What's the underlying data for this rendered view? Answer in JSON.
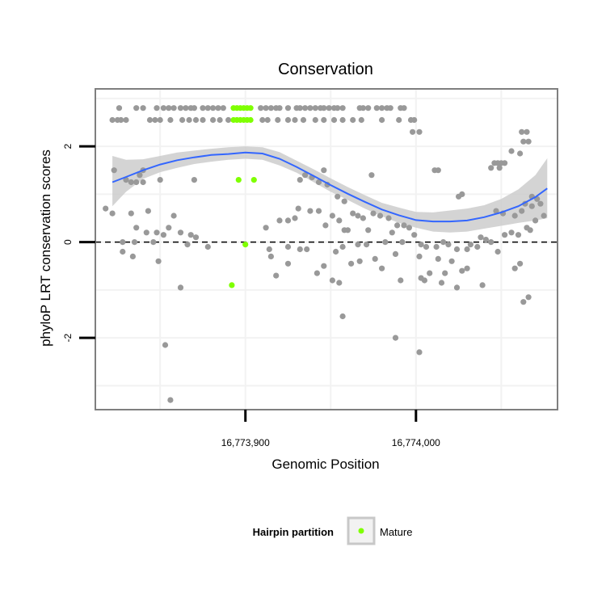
{
  "chart_data": {
    "type": "scatter",
    "title": "Conservation",
    "xlabel": "Genomic Position",
    "ylabel": "phyloP LRT conservation scores",
    "xlim": [
      16773812,
      16774083
    ],
    "ylim": [
      -3.5,
      3.2
    ],
    "x_ticks": [
      {
        "value": 16773900,
        "label": "16,773,900"
      },
      {
        "value": 16774000,
        "label": "16,774,000"
      }
    ],
    "y_ticks": [
      {
        "value": -2,
        "label": "-2"
      },
      {
        "value": 0,
        "label": "0"
      },
      {
        "value": 2,
        "label": "2"
      }
    ],
    "grid": true,
    "reference_line": {
      "y": 0,
      "style": "dashed"
    },
    "legend": {
      "position": "bottom",
      "title": "Hairpin partition",
      "entries": [
        {
          "label": "Mature",
          "color": "#7fff00"
        }
      ]
    },
    "colors": {
      "other_points": "#999999",
      "mature_points": "#7fff00",
      "smooth_line": "#3366ff",
      "confidence_band": "#cccccc",
      "panel_border": "#7f7f7f",
      "grid": "#f2f2f2"
    },
    "series": [
      {
        "name": "Mature",
        "color": "#7fff00",
        "points": [
          [
            16773893,
            2.8
          ],
          [
            16773895,
            2.8
          ],
          [
            16773897,
            2.8
          ],
          [
            16773899,
            2.8
          ],
          [
            16773901,
            2.8
          ],
          [
            16773903,
            2.8
          ],
          [
            16773893,
            2.55
          ],
          [
            16773895,
            2.55
          ],
          [
            16773897,
            2.55
          ],
          [
            16773899,
            2.55
          ],
          [
            16773901,
            2.55
          ],
          [
            16773903,
            2.55
          ],
          [
            16773896,
            1.3
          ],
          [
            16773905,
            1.3
          ],
          [
            16773900,
            -0.05
          ],
          [
            16773892,
            -0.9
          ]
        ]
      },
      {
        "color": "#999999",
        "points": [
          [
            16773826,
            2.8
          ],
          [
            16773836,
            2.8
          ],
          [
            16773840,
            2.8
          ],
          [
            16773848,
            2.8
          ],
          [
            16773852,
            2.8
          ],
          [
            16773855,
            2.8
          ],
          [
            16773858,
            2.8
          ],
          [
            16773862,
            2.8
          ],
          [
            16773865,
            2.8
          ],
          [
            16773868,
            2.8
          ],
          [
            16773870,
            2.8
          ],
          [
            16773875,
            2.8
          ],
          [
            16773878,
            2.8
          ],
          [
            16773881,
            2.8
          ],
          [
            16773884,
            2.8
          ],
          [
            16773887,
            2.8
          ],
          [
            16773909,
            2.8
          ],
          [
            16773912,
            2.8
          ],
          [
            16773915,
            2.8
          ],
          [
            16773918,
            2.8
          ],
          [
            16773920,
            2.8
          ],
          [
            16773925,
            2.8
          ],
          [
            16773930,
            2.8
          ],
          [
            16773932,
            2.8
          ],
          [
            16773935,
            2.8
          ],
          [
            16773938,
            2.8
          ],
          [
            16773941,
            2.8
          ],
          [
            16773944,
            2.8
          ],
          [
            16773946,
            2.8
          ],
          [
            16773949,
            2.8
          ],
          [
            16773952,
            2.8
          ],
          [
            16773954,
            2.8
          ],
          [
            16773957,
            2.8
          ],
          [
            16773967,
            2.8
          ],
          [
            16773969,
            2.8
          ],
          [
            16773972,
            2.8
          ],
          [
            16773977,
            2.8
          ],
          [
            16773980,
            2.8
          ],
          [
            16773983,
            2.8
          ],
          [
            16773985,
            2.8
          ],
          [
            16773991,
            2.8
          ],
          [
            16773993,
            2.8
          ],
          [
            16773822,
            2.55
          ],
          [
            16773825,
            2.55
          ],
          [
            16773827,
            2.55
          ],
          [
            16773830,
            2.55
          ],
          [
            16773844,
            2.55
          ],
          [
            16773847,
            2.55
          ],
          [
            16773850,
            2.55
          ],
          [
            16773856,
            2.55
          ],
          [
            16773863,
            2.55
          ],
          [
            16773867,
            2.55
          ],
          [
            16773871,
            2.55
          ],
          [
            16773875,
            2.55
          ],
          [
            16773881,
            2.55
          ],
          [
            16773885,
            2.55
          ],
          [
            16773890,
            2.55
          ],
          [
            16773910,
            2.55
          ],
          [
            16773913,
            2.55
          ],
          [
            16773919,
            2.55
          ],
          [
            16773925,
            2.55
          ],
          [
            16773929,
            2.55
          ],
          [
            16773934,
            2.55
          ],
          [
            16773941,
            2.55
          ],
          [
            16773946,
            2.55
          ],
          [
            16773952,
            2.55
          ],
          [
            16773957,
            2.55
          ],
          [
            16773963,
            2.55
          ],
          [
            16773968,
            2.55
          ],
          [
            16773980,
            2.55
          ],
          [
            16773990,
            2.55
          ],
          [
            16773997,
            2.55
          ],
          [
            16773999,
            2.55
          ],
          [
            16773998,
            2.3
          ],
          [
            16774002,
            2.3
          ],
          [
            16774062,
            2.3
          ],
          [
            16774065,
            2.3
          ],
          [
            16774063,
            2.1
          ],
          [
            16774066,
            2.1
          ],
          [
            16774056,
            1.9
          ],
          [
            16774061,
            1.85
          ],
          [
            16774046,
            1.65
          ],
          [
            16774048,
            1.65
          ],
          [
            16774050,
            1.65
          ],
          [
            16774052,
            1.65
          ],
          [
            16774044,
            1.55
          ],
          [
            16774049,
            1.55
          ],
          [
            16774011,
            1.5
          ],
          [
            16774013,
            1.5
          ],
          [
            16773823,
            1.5
          ],
          [
            16773840,
            1.5
          ],
          [
            16773838,
            1.4
          ],
          [
            16773830,
            1.3
          ],
          [
            16773833,
            1.25
          ],
          [
            16773836,
            1.25
          ],
          [
            16773840,
            1.25
          ],
          [
            16773850,
            1.3
          ],
          [
            16773870,
            1.3
          ],
          [
            16773932,
            1.3
          ],
          [
            16773935,
            1.4
          ],
          [
            16773939,
            1.35
          ],
          [
            16773943,
            1.25
          ],
          [
            16773946,
            1.5
          ],
          [
            16773948,
            1.2
          ],
          [
            16773974,
            1.4
          ],
          [
            16773954,
            0.95
          ],
          [
            16773958,
            0.85
          ],
          [
            16774025,
            0.95
          ],
          [
            16774027,
            1.0
          ],
          [
            16774051,
            0.6
          ],
          [
            16774047,
            0.65
          ],
          [
            16774058,
            0.55
          ],
          [
            16774062,
            0.65
          ],
          [
            16774064,
            0.8
          ],
          [
            16774068,
            0.95
          ],
          [
            16774071,
            0.9
          ],
          [
            16774073,
            0.8
          ],
          [
            16774070,
            0.45
          ],
          [
            16774068,
            0.75
          ],
          [
            16774075,
            0.55
          ],
          [
            16773818,
            0.7
          ],
          [
            16773822,
            0.6
          ],
          [
            16773843,
            0.65
          ],
          [
            16773858,
            0.55
          ],
          [
            16773931,
            0.7
          ],
          [
            16773938,
            0.65
          ],
          [
            16773943,
            0.65
          ],
          [
            16773951,
            0.55
          ],
          [
            16773955,
            0.45
          ],
          [
            16773958,
            0.25
          ],
          [
            16773960,
            0.25
          ],
          [
            16773963,
            0.6
          ],
          [
            16773966,
            0.55
          ],
          [
            16773969,
            0.5
          ],
          [
            16773975,
            0.6
          ],
          [
            16773979,
            0.55
          ],
          [
            16773984,
            0.5
          ],
          [
            16773989,
            0.35
          ],
          [
            16773993,
            0.35
          ],
          [
            16773996,
            0.3
          ],
          [
            16773833,
            0.6
          ],
          [
            16773836,
            0.3
          ],
          [
            16773848,
            0.2
          ],
          [
            16773852,
            0.15
          ],
          [
            16773855,
            0.3
          ],
          [
            16773862,
            0.2
          ],
          [
            16773868,
            0.15
          ],
          [
            16773871,
            0.1
          ],
          [
            16773912,
            0.3
          ],
          [
            16773920,
            0.45
          ],
          [
            16773925,
            0.45
          ],
          [
            16773929,
            0.5
          ],
          [
            16773947,
            0.35
          ],
          [
            16773972,
            0.25
          ],
          [
            16773986,
            0.2
          ],
          [
            16773999,
            0.15
          ],
          [
            16773828,
            0.0
          ],
          [
            16773835,
            0.0
          ],
          [
            16773842,
            0.2
          ],
          [
            16773846,
            0.0
          ],
          [
            16773866,
            -0.05
          ],
          [
            16773878,
            -0.1
          ],
          [
            16773914,
            -0.15
          ],
          [
            16773925,
            -0.1
          ],
          [
            16773932,
            -0.15
          ],
          [
            16773957,
            -0.1
          ],
          [
            16773966,
            -0.05
          ],
          [
            16773971,
            -0.05
          ],
          [
            16773982,
            0.0
          ],
          [
            16773992,
            0.0
          ],
          [
            16774003,
            -0.05
          ],
          [
            16774006,
            -0.1
          ],
          [
            16774012,
            -0.1
          ],
          [
            16774016,
            0.0
          ],
          [
            16774019,
            -0.05
          ],
          [
            16774024,
            -0.15
          ],
          [
            16774030,
            -0.15
          ],
          [
            16774032,
            -0.05
          ],
          [
            16774036,
            -0.1
          ],
          [
            16774038,
            0.1
          ],
          [
            16774041,
            0.05
          ],
          [
            16774044,
            0.0
          ],
          [
            16774048,
            -0.2
          ],
          [
            16774052,
            0.15
          ],
          [
            16774056,
            0.2
          ],
          [
            16774060,
            0.15
          ],
          [
            16774065,
            0.3
          ],
          [
            16774067,
            0.25
          ],
          [
            16773828,
            -0.2
          ],
          [
            16773834,
            -0.3
          ],
          [
            16773849,
            -0.4
          ],
          [
            16773915,
            -0.3
          ],
          [
            16773925,
            -0.45
          ],
          [
            16773936,
            -0.15
          ],
          [
            16773946,
            -0.5
          ],
          [
            16773953,
            -0.2
          ],
          [
            16773962,
            -0.45
          ],
          [
            16773967,
            -0.4
          ],
          [
            16773976,
            -0.35
          ],
          [
            16773980,
            -0.55
          ],
          [
            16773988,
            -0.25
          ],
          [
            16774002,
            -0.3
          ],
          [
            16774008,
            -0.65
          ],
          [
            16774013,
            -0.35
          ],
          [
            16774017,
            -0.65
          ],
          [
            16774021,
            -0.4
          ],
          [
            16774027,
            -0.6
          ],
          [
            16774030,
            -0.55
          ],
          [
            16773918,
            -0.7
          ],
          [
            16773942,
            -0.65
          ],
          [
            16773951,
            -0.8
          ],
          [
            16773955,
            -0.85
          ],
          [
            16773991,
            -0.8
          ],
          [
            16774003,
            -0.75
          ],
          [
            16774005,
            -0.8
          ],
          [
            16774015,
            -0.85
          ],
          [
            16774024,
            -0.95
          ],
          [
            16774039,
            -0.9
          ],
          [
            16774058,
            -0.55
          ],
          [
            16774061,
            -0.45
          ],
          [
            16774063,
            -1.25
          ],
          [
            16774066,
            -1.15
          ],
          [
            16773862,
            -0.95
          ],
          [
            16773957,
            -1.55
          ],
          [
            16773988,
            -2.0
          ],
          [
            16773853,
            -2.15
          ],
          [
            16774002,
            -2.3
          ],
          [
            16773856,
            -3.3
          ]
        ]
      }
    ],
    "smooth_fit": {
      "method": "loess",
      "x": [
        16773822,
        16773830,
        16773840,
        16773850,
        16773860,
        16773870,
        16773880,
        16773890,
        16773900,
        16773910,
        16773920,
        16773930,
        16773940,
        16773950,
        16773960,
        16773970,
        16773980,
        16773990,
        16774000,
        16774010,
        16774020,
        16774030,
        16774040,
        16774050,
        16774060,
        16774070,
        16774077
      ],
      "y": [
        1.25,
        1.36,
        1.5,
        1.62,
        1.71,
        1.77,
        1.82,
        1.84,
        1.87,
        1.85,
        1.74,
        1.57,
        1.38,
        1.19,
        1.01,
        0.84,
        0.68,
        0.56,
        0.46,
        0.43,
        0.43,
        0.45,
        0.52,
        0.62,
        0.75,
        0.94,
        1.12
      ],
      "lower": [
        0.75,
        1.05,
        1.32,
        1.46,
        1.55,
        1.63,
        1.68,
        1.72,
        1.74,
        1.72,
        1.6,
        1.45,
        1.25,
        1.05,
        0.88,
        0.7,
        0.54,
        0.4,
        0.3,
        0.22,
        0.2,
        0.22,
        0.28,
        0.34,
        0.4,
        0.45,
        0.5
      ],
      "upper": [
        1.8,
        1.72,
        1.73,
        1.8,
        1.87,
        1.91,
        1.95,
        1.98,
        2.0,
        1.98,
        1.88,
        1.7,
        1.52,
        1.33,
        1.15,
        0.98,
        0.82,
        0.72,
        0.63,
        0.62,
        0.66,
        0.7,
        0.77,
        0.9,
        1.1,
        1.4,
        1.75
      ]
    }
  }
}
